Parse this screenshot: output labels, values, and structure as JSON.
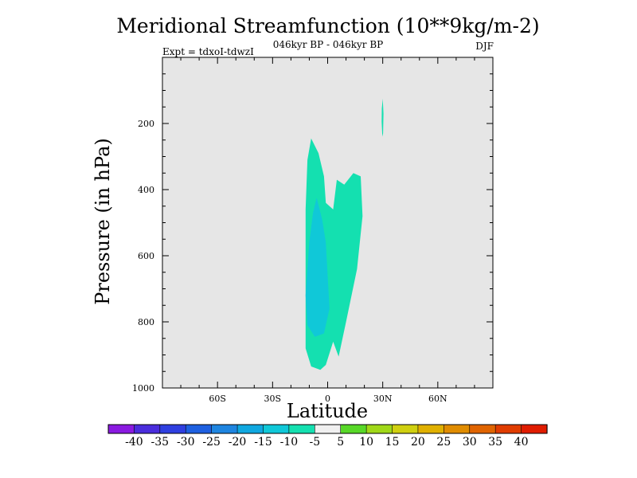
{
  "chart_data": {
    "type": "contour",
    "title": "Meridional Streamfunction (10**9kg/m-2)",
    "subtitle_center": "046kyr BP - 046kyr BP",
    "subtitle_left": "Expt = tdxoI-tdwzI",
    "subtitle_right": "DJF",
    "xlabel": "Latitude",
    "ylabel": "Pressure (in hPa)",
    "xlim": [
      -90,
      90
    ],
    "ylim": [
      1000,
      0
    ],
    "x_ticks": [
      {
        "value": -60,
        "label": "60S"
      },
      {
        "value": -30,
        "label": "30S"
      },
      {
        "value": 0,
        "label": "0"
      },
      {
        "value": 30,
        "label": "30N"
      },
      {
        "value": 60,
        "label": "60N"
      }
    ],
    "y_ticks": [
      {
        "value": 200,
        "label": "200"
      },
      {
        "value": 400,
        "label": "400"
      },
      {
        "value": 600,
        "label": "600"
      },
      {
        "value": 800,
        "label": "800"
      },
      {
        "value": 1000,
        "label": "1000"
      }
    ],
    "background_color": "#e6e6e6",
    "colorbar": {
      "labels": [
        "-40",
        "-35",
        "-30",
        "-25",
        "-20",
        "-15",
        "-10",
        "-5",
        "5",
        "10",
        "15",
        "20",
        "25",
        "30",
        "35",
        "40"
      ],
      "colors": [
        "#8a1ae0",
        "#4a2ddc",
        "#2f3fe0",
        "#1e60e0",
        "#1e85e0",
        "#10a8e0",
        "#10c8d8",
        "#14e0b0",
        "#f0f0f0",
        "#58d828",
        "#a0d818",
        "#d0d010",
        "#e0b000",
        "#e08c00",
        "#e06400",
        "#e03c00",
        "#e01c00"
      ]
    },
    "regions": [
      {
        "level": "-10 to -5",
        "color": "#14e0b0",
        "lat_range": [
          -12,
          20
        ],
        "p_range": [
          240,
          940
        ],
        "polygon": [
          [
            -9,
            245
          ],
          [
            -5,
            290
          ],
          [
            -2,
            360
          ],
          [
            -1,
            440
          ],
          [
            3,
            460
          ],
          [
            5,
            370
          ],
          [
            9,
            385
          ],
          [
            14,
            350
          ],
          [
            18,
            360
          ],
          [
            19,
            480
          ],
          [
            16,
            640
          ],
          [
            10,
            800
          ],
          [
            6,
            905
          ],
          [
            3,
            860
          ],
          [
            -1,
            930
          ],
          [
            -4,
            945
          ],
          [
            -9,
            935
          ],
          [
            -12,
            880
          ],
          [
            -12,
            460
          ],
          [
            -11,
            310
          ]
        ]
      },
      {
        "level": "-15 to -10",
        "color": "#10c8d8",
        "lat_range": [
          -12,
          1
        ],
        "p_range": [
          425,
          845
        ],
        "polygon": [
          [
            -6,
            425
          ],
          [
            -3,
            490
          ],
          [
            -1,
            560
          ],
          [
            0,
            660
          ],
          [
            1,
            760
          ],
          [
            -2,
            835
          ],
          [
            -7,
            845
          ],
          [
            -11,
            810
          ],
          [
            -12,
            720
          ],
          [
            -10,
            560
          ],
          [
            -8,
            470
          ]
        ]
      },
      {
        "level": "-10 to -5",
        "color": "#14e0b0",
        "lat_range": [
          29,
          30.5
        ],
        "p_range": [
          125,
          240
        ],
        "polygon": [
          [
            30,
            125
          ],
          [
            30.4,
            170
          ],
          [
            30.2,
            230
          ],
          [
            29.8,
            240
          ],
          [
            29.4,
            195
          ],
          [
            29.5,
            155
          ]
        ]
      }
    ]
  }
}
